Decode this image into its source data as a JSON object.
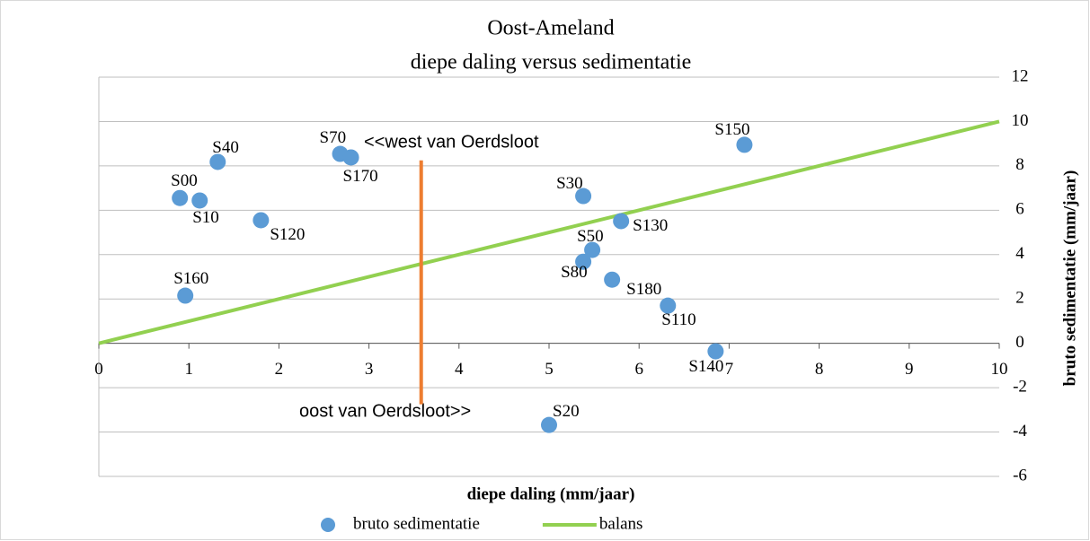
{
  "chart_data": {
    "type": "scatter",
    "title": "Oost-Ameland",
    "subtitle": "diepe daling versus sedimentatie",
    "x_label": "diepe daling (mm/jaar)",
    "y_label": "bruto sedimentatie (mm/jaar)",
    "xlim": [
      0,
      10
    ],
    "xticks": [
      0,
      1,
      2,
      3,
      4,
      5,
      6,
      7,
      8,
      9,
      10
    ],
    "ylim": [
      -6,
      12
    ],
    "yticks": [
      -6,
      -4,
      -2,
      0,
      2,
      4,
      6,
      8,
      10,
      12
    ],
    "grid": true,
    "series": [
      {
        "name": "bruto sedimentatie",
        "color": "#5b9bd5",
        "labels": [
          "S00",
          "S10",
          "S40",
          "S120",
          "S160",
          "S70",
          "S170",
          "S30",
          "S130",
          "S50",
          "S80",
          "S180",
          "S110",
          "S140",
          "S150",
          "S20"
        ],
        "x": [
          0.9,
          1.12,
          1.32,
          1.8,
          0.96,
          2.68,
          2.8,
          5.38,
          5.8,
          5.48,
          5.38,
          5.7,
          6.32,
          6.85,
          7.17,
          5.0
        ],
        "values": [
          6.55,
          6.44,
          8.18,
          5.55,
          2.15,
          8.54,
          8.38,
          6.64,
          5.51,
          4.21,
          3.68,
          2.87,
          1.7,
          -0.36,
          8.95,
          -3.68
        ]
      },
      {
        "name": "balans",
        "type": "line",
        "color": "#92d050",
        "x": [
          0,
          10
        ],
        "values": [
          0,
          10
        ]
      }
    ],
    "reference_line": {
      "x": [
        3.58,
        3.58
      ],
      "values": [
        8.25,
        -2.75
      ],
      "color": "#ed7d31"
    },
    "annotations": [
      "<<west van Oerdsloot",
      "oost van Oerdsloot>>"
    ]
  }
}
